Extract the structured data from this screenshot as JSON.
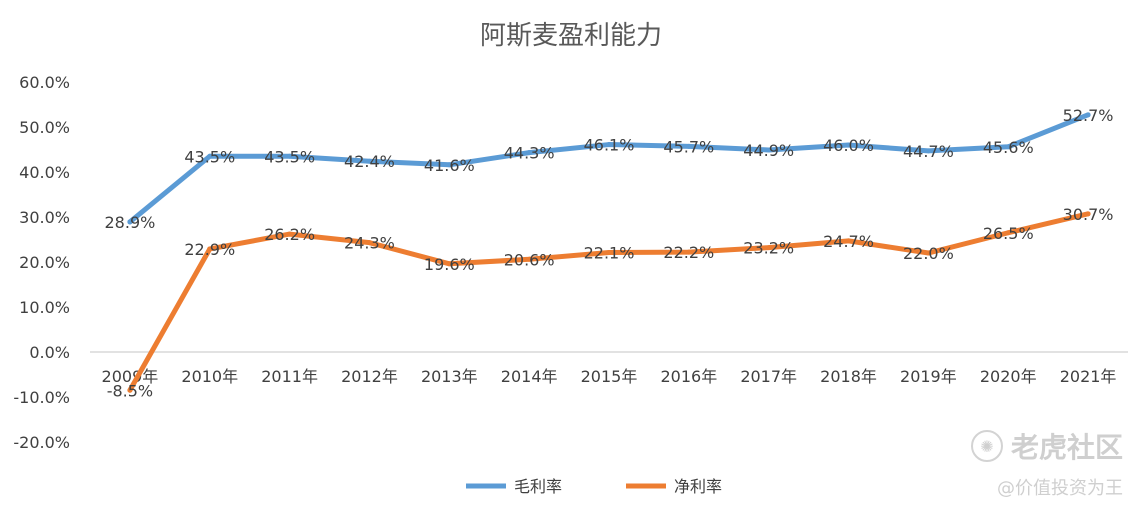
{
  "chart_data": {
    "type": "line",
    "title": "阿斯麦盈利能力",
    "categories": [
      "2009年",
      "2010年",
      "2011年",
      "2012年",
      "2013年",
      "2014年",
      "2015年",
      "2016年",
      "2017年",
      "2018年",
      "2019年",
      "2020年",
      "2021年"
    ],
    "series": [
      {
        "name": "毛利率",
        "color": "#5b9bd5",
        "values": [
          28.9,
          43.5,
          43.5,
          42.4,
          41.6,
          44.3,
          46.1,
          45.7,
          44.9,
          46.0,
          44.7,
          45.6,
          52.7
        ],
        "labels": [
          "28.9%",
          "43.5%",
          "43.5%",
          "42.4%",
          "41.6%",
          "44.3%",
          "46.1%",
          "45.7%",
          "44.9%",
          "46.0%",
          "44.7%",
          "45.6%",
          "52.7%"
        ]
      },
      {
        "name": "净利率",
        "color": "#ed7d31",
        "values": [
          -8.5,
          22.9,
          26.2,
          24.3,
          19.6,
          20.6,
          22.1,
          22.2,
          23.2,
          24.7,
          22.0,
          26.5,
          30.7
        ],
        "labels": [
          "-8.5%",
          "22.9%",
          "26.2%",
          "24.3%",
          "19.6%",
          "20.6%",
          "22.1%",
          "22.2%",
          "23.2%",
          "24.7%",
          "22.0%",
          "26.5%",
          "30.7%"
        ]
      }
    ],
    "yticks": [
      60,
      50,
      40,
      30,
      20,
      10,
      0,
      -10,
      -20
    ],
    "ytick_labels": [
      "60.0%",
      "50.0%",
      "40.0%",
      "30.0%",
      "20.0%",
      "10.0%",
      "0.0%",
      "-10.0%",
      "-20.0%"
    ],
    "ylim": [
      -20,
      60
    ],
    "grid": false,
    "legend": "bottom"
  },
  "watermark": {
    "main": "老虎社区",
    "sub": "@价值投资为王",
    "icon": "tiger-icon"
  }
}
